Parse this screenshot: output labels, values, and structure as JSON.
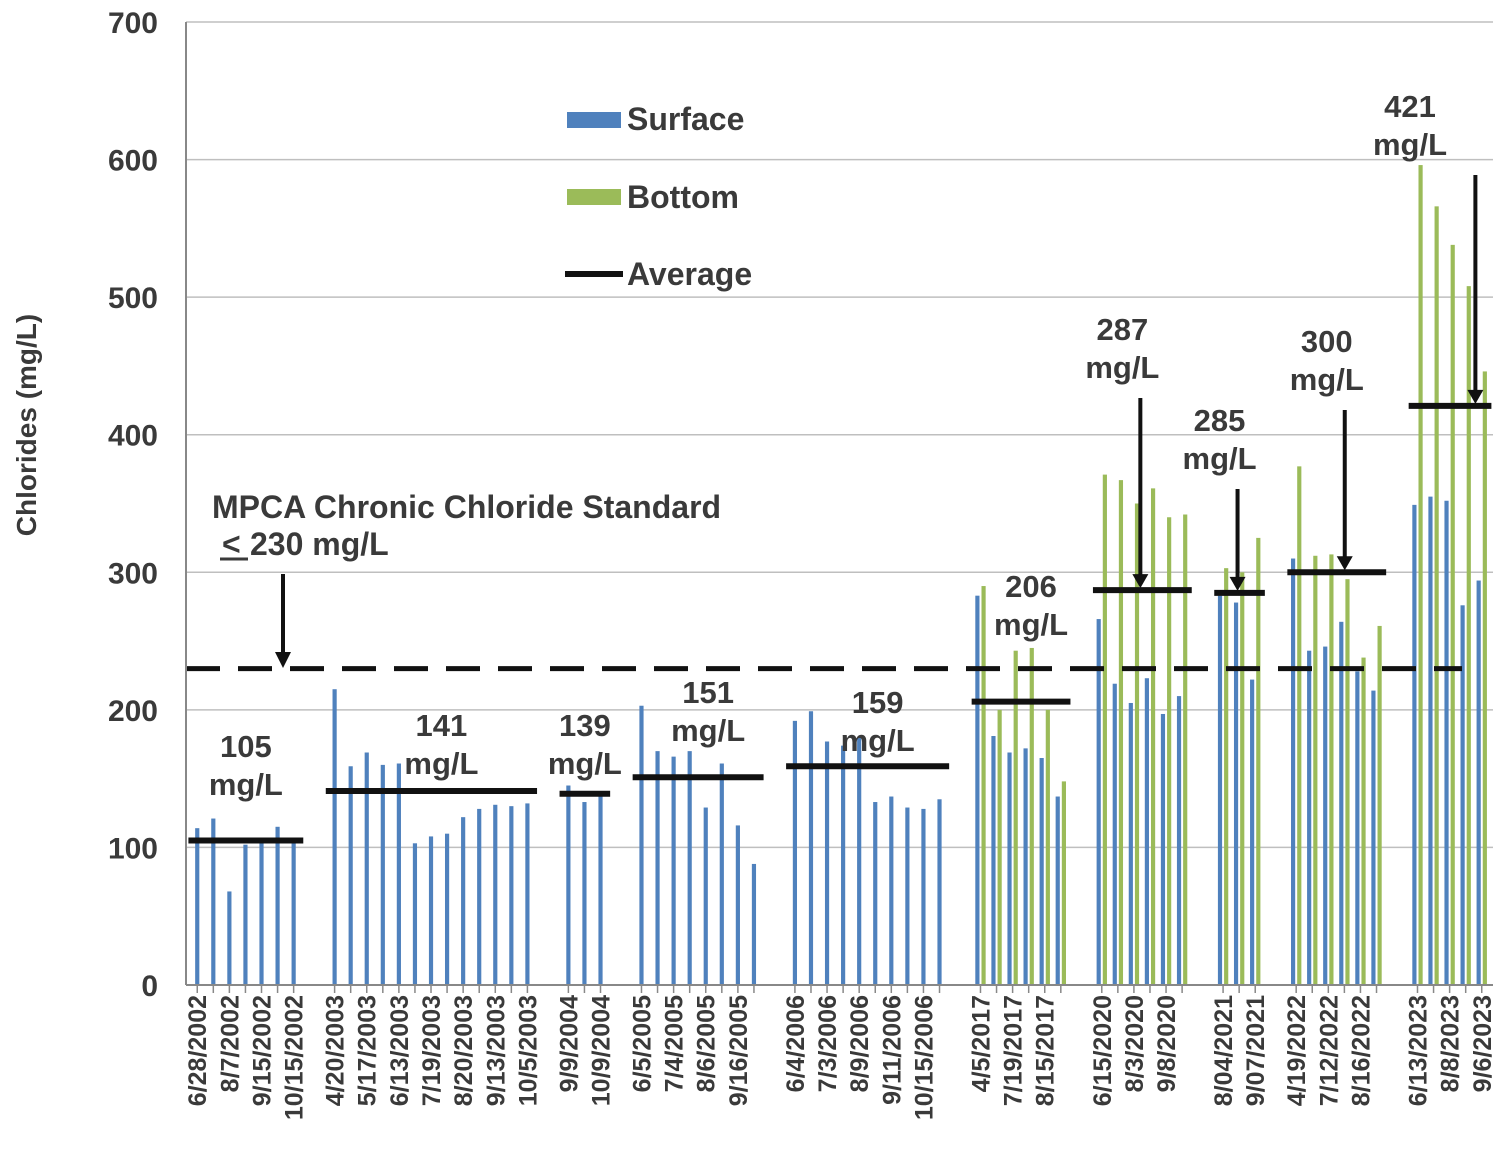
{
  "chart_data": {
    "type": "bar",
    "title": "",
    "xlabel": "",
    "ylabel": "Chlorides (mg/L)",
    "ylim": [
      0,
      700
    ],
    "yticks": [
      "0",
      "100",
      "200",
      "300",
      "400",
      "500",
      "600",
      "700"
    ],
    "grid": true,
    "legend_position": "top-center",
    "legend": [
      "Surface",
      "Bottom",
      "Average"
    ],
    "colors": {
      "surface": "#4f81bd",
      "bottom": "#9bbb59",
      "average": "#111111",
      "grid": "#bfbfbf",
      "axis": "#888888"
    },
    "year_groups": [
      {
        "year": "2002",
        "first": 0,
        "last": 6
      },
      {
        "year": "2003",
        "first": 7,
        "last": 19
      },
      {
        "year": "2004",
        "first": 20,
        "last": 22
      },
      {
        "year": "2005",
        "first": 23,
        "last": 30
      },
      {
        "year": "2006",
        "first": 31,
        "last": 40
      },
      {
        "year": "2017",
        "first": 41,
        "last": 46
      },
      {
        "year": "2020",
        "first": 47,
        "last": 52
      },
      {
        "year": "2021",
        "first": 53,
        "last": 55
      },
      {
        "year": "2022",
        "first": 56,
        "last": 61
      },
      {
        "year": "2023",
        "first": 62,
        "last": 66
      }
    ],
    "samples": [
      {
        "label": "6/28/2002",
        "surface": 114,
        "bottom": null
      },
      {
        "label": "",
        "surface": 121,
        "bottom": null
      },
      {
        "label": "8/7/2002",
        "surface": 68,
        "bottom": null
      },
      {
        "label": "",
        "surface": 102,
        "bottom": null
      },
      {
        "label": "9/15/2002",
        "surface": 106,
        "bottom": null
      },
      {
        "label": "",
        "surface": 115,
        "bottom": null
      },
      {
        "label": "10/15/2002",
        "surface": 103,
        "bottom": null
      },
      {
        "label": "4/20/2003",
        "surface": 215,
        "bottom": null
      },
      {
        "label": "",
        "surface": 159,
        "bottom": null
      },
      {
        "label": "5/17/2003",
        "surface": 169,
        "bottom": null
      },
      {
        "label": "",
        "surface": 160,
        "bottom": null
      },
      {
        "label": "6/13/2003",
        "surface": 161,
        "bottom": null
      },
      {
        "label": "",
        "surface": 103,
        "bottom": null
      },
      {
        "label": "7/19/2003",
        "surface": 108,
        "bottom": null
      },
      {
        "label": "",
        "surface": 110,
        "bottom": null
      },
      {
        "label": "8/20/2003",
        "surface": 122,
        "bottom": null
      },
      {
        "label": "",
        "surface": 128,
        "bottom": null
      },
      {
        "label": "9/13/2003",
        "surface": 131,
        "bottom": null
      },
      {
        "label": "",
        "surface": 130,
        "bottom": null
      },
      {
        "label": "10/5/2003",
        "surface": 132,
        "bottom": null
      },
      {
        "label": "9/9/2004",
        "surface": 145,
        "bottom": null
      },
      {
        "label": "",
        "surface": 133,
        "bottom": null
      },
      {
        "label": "10/9/2004",
        "surface": 139,
        "bottom": null
      },
      {
        "label": "6/5/2005",
        "surface": 203,
        "bottom": null
      },
      {
        "label": "",
        "surface": 170,
        "bottom": null
      },
      {
        "label": "7/4/2005",
        "surface": 166,
        "bottom": null
      },
      {
        "label": "",
        "surface": 170,
        "bottom": null
      },
      {
        "label": "8/6/2005",
        "surface": 129,
        "bottom": null
      },
      {
        "label": "",
        "surface": 161,
        "bottom": null
      },
      {
        "label": "9/16/2005",
        "surface": 116,
        "bottom": null
      },
      {
        "label": "",
        "surface": 88,
        "bottom": null
      },
      {
        "label": "6/4/2006",
        "surface": 192,
        "bottom": null
      },
      {
        "label": "",
        "surface": 199,
        "bottom": null
      },
      {
        "label": "7/3/2006",
        "surface": 177,
        "bottom": null
      },
      {
        "label": "",
        "surface": 174,
        "bottom": null
      },
      {
        "label": "8/9/2006",
        "surface": 180,
        "bottom": null
      },
      {
        "label": "",
        "surface": 133,
        "bottom": null
      },
      {
        "label": "9/11/2006",
        "surface": 137,
        "bottom": null
      },
      {
        "label": "",
        "surface": 129,
        "bottom": null
      },
      {
        "label": "10/15/2006",
        "surface": 128,
        "bottom": null
      },
      {
        "label": "",
        "surface": 135,
        "bottom": null
      },
      {
        "label": "4/5/2017",
        "surface": 283,
        "bottom": 290
      },
      {
        "label": "",
        "surface": 181,
        "bottom": 200
      },
      {
        "label": "7/19/2017",
        "surface": 169,
        "bottom": 243
      },
      {
        "label": "",
        "surface": 172,
        "bottom": 245
      },
      {
        "label": "8/15/2017",
        "surface": 165,
        "bottom": 200
      },
      {
        "label": "",
        "surface": 137,
        "bottom": 148
      },
      {
        "label": "6/15/2020",
        "surface": 266,
        "bottom": 371
      },
      {
        "label": "",
        "surface": 219,
        "bottom": 367
      },
      {
        "label": "8/3/2020",
        "surface": 205,
        "bottom": 350
      },
      {
        "label": "",
        "surface": 223,
        "bottom": 361
      },
      {
        "label": "9/8/2020",
        "surface": 197,
        "bottom": 340
      },
      {
        "label": "",
        "surface": 210,
        "bottom": 342
      },
      {
        "label": "8/04/2021",
        "surface": 283,
        "bottom": 303
      },
      {
        "label": "",
        "surface": 278,
        "bottom": 300
      },
      {
        "label": "9/07/2021",
        "surface": 222,
        "bottom": 325
      },
      {
        "label": "4/19/2022",
        "surface": 310,
        "bottom": 377
      },
      {
        "label": "",
        "surface": 243,
        "bottom": 312
      },
      {
        "label": "7/12/2022",
        "surface": 246,
        "bottom": 313
      },
      {
        "label": "",
        "surface": 264,
        "bottom": 295
      },
      {
        "label": "8/16/2022",
        "surface": 228,
        "bottom": 238
      },
      {
        "label": "",
        "surface": 214,
        "bottom": 261
      },
      {
        "label": "6/13/2023",
        "surface": 349,
        "bottom": 596
      },
      {
        "label": "",
        "surface": 355,
        "bottom": 566
      },
      {
        "label": "8/8/2023",
        "surface": 352,
        "bottom": 538
      },
      {
        "label": "",
        "surface": 276,
        "bottom": 508
      },
      {
        "label": "9/6/2023",
        "surface": 294,
        "bottom": 446
      }
    ],
    "averages": [
      {
        "year": "2002",
        "value": 105,
        "label_value": "105",
        "label_unit": "mg/L"
      },
      {
        "year": "2003",
        "value": 141,
        "label_value": "141",
        "label_unit": "mg/L"
      },
      {
        "year": "2004",
        "value": 139,
        "label_value": "139",
        "label_unit": "mg/L"
      },
      {
        "year": "2005",
        "value": 151,
        "label_value": "151",
        "label_unit": "mg/L"
      },
      {
        "year": "2006",
        "value": 159,
        "label_value": "159",
        "label_unit": "mg/L"
      },
      {
        "year": "2017",
        "value": 206,
        "label_value": "206",
        "label_unit": "mg/L"
      },
      {
        "year": "2020",
        "value": 287,
        "label_value": "287",
        "label_unit": "mg/L"
      },
      {
        "year": "2021",
        "value": 285,
        "label_value": "285",
        "label_unit": "mg/L"
      },
      {
        "year": "2022",
        "value": 300,
        "label_value": "300",
        "label_unit": "mg/L"
      },
      {
        "year": "2023",
        "value": 421,
        "label_value": "421",
        "label_unit": "mg/L"
      }
    ],
    "standard": {
      "value": 230,
      "line1": "MPCA Chronic Chloride Standard",
      "line2_symbol": "<",
      "line2": "230 mg/L"
    }
  }
}
